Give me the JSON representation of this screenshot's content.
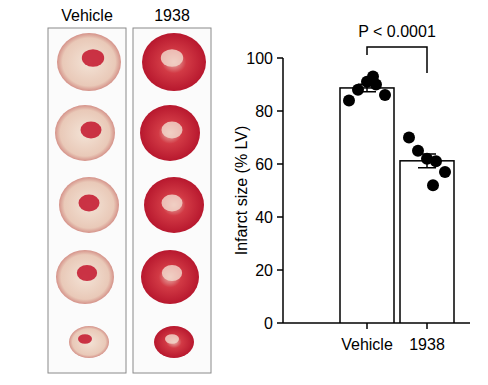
{
  "chart_data": {
    "type": "bar",
    "categories": [
      "Vehicle",
      "1938"
    ],
    "values": [
      88.7,
      61.2
    ],
    "errors": [
      1.4,
      2.6
    ],
    "points": [
      [
        84,
        88,
        91,
        90,
        86,
        93
      ],
      [
        70,
        65,
        62,
        61,
        57,
        52
      ]
    ],
    "color": "#ffffff",
    "y_label": "Infarct size (% LV)",
    "annotation": "P < 0.0001",
    "ylim": [
      0,
      100
    ],
    "yticks": [
      0,
      20,
      40,
      60,
      80,
      100
    ],
    "grid": false
  }
}
